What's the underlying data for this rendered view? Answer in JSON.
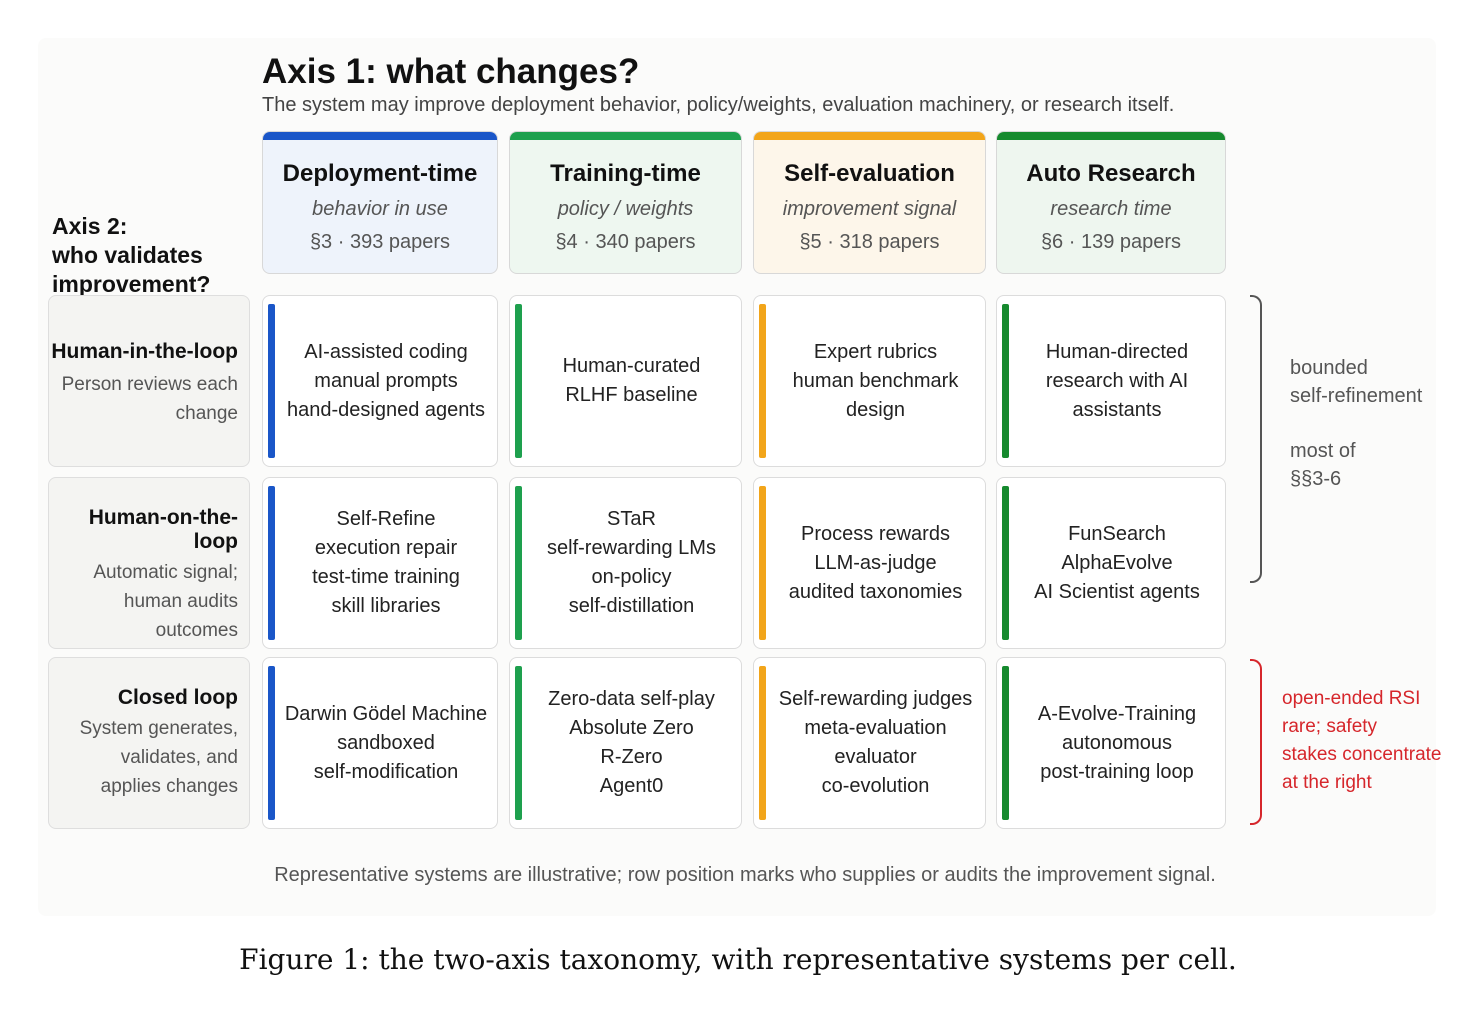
{
  "axis1": {
    "title": "Axis 1: what changes?",
    "subtitle": "The system may improve deployment behavior, policy/weights, evaluation machinery, or research itself."
  },
  "axis2": {
    "title_lines": [
      "Axis 2:",
      "who validates",
      "improvement?"
    ]
  },
  "columns": [
    {
      "name": "Deployment-time",
      "sub": "behavior in use",
      "count": "§3 · 393 papers",
      "color": "#1a56c8",
      "tint": "#eef3fb"
    },
    {
      "name": "Training-time",
      "sub": "policy / weights",
      "count": "§4 · 340 papers",
      "color": "#1ea04e",
      "tint": "#eef7f0"
    },
    {
      "name": "Self-evaluation",
      "sub": "improvement signal",
      "count": "§5 · 318 papers",
      "color": "#f2a51a",
      "tint": "#fdf6ea"
    },
    {
      "name": "Auto Research",
      "sub": "research time",
      "count": "§6 · 139 papers",
      "color": "#168a2e",
      "tint": "#eef6ef"
    }
  ],
  "rows": [
    {
      "name": "Human-in-the-loop",
      "desc": "Person reviews each\nchange"
    },
    {
      "name": "Human-on-the-loop",
      "desc": "Automatic signal;\nhuman audits\noutcomes"
    },
    {
      "name": "Closed loop",
      "desc": "System generates,\nvalidates, and\napplies changes"
    }
  ],
  "cells": [
    [
      [
        "AI-assisted coding",
        "manual prompts",
        "hand-designed agents"
      ],
      [
        "Human-curated",
        "RLHF baseline"
      ],
      [
        "Expert rubrics",
        "human benchmark",
        "design"
      ],
      [
        "Human-directed",
        "research with AI",
        "assistants"
      ]
    ],
    [
      [
        "Self-Refine",
        "execution repair",
        "test-time training",
        "skill libraries"
      ],
      [
        "STaR",
        "self-rewarding LMs",
        "on-policy",
        "self-distillation"
      ],
      [
        "Process rewards",
        "LLM-as-judge",
        "audited taxonomies"
      ],
      [
        "FunSearch",
        "AlphaEvolve",
        "AI Scientist agents"
      ]
    ],
    [
      [
        "Darwin Gödel Machine",
        "sandboxed",
        "self-modification"
      ],
      [
        "Zero-data self-play",
        "Absolute Zero",
        "R-Zero",
        "Agent0"
      ],
      [
        "Self-rewarding judges",
        "meta-evaluation",
        "evaluator",
        "co-evolution"
      ],
      [
        "A-Evolve-Training",
        "autonomous",
        "post-training loop"
      ]
    ]
  ],
  "notes": {
    "bounded_lines": [
      "bounded",
      "self-refinement"
    ],
    "most_lines": [
      "most of",
      "§§3-6"
    ],
    "red_lines": [
      "open-ended RSI",
      "rare; safety",
      "stakes concentrate",
      "at the right"
    ],
    "red_color": "#d6262b"
  },
  "footnote": "Representative systems are illustrative; row position marks who supplies or audits the improvement signal.",
  "caption": "Figure 1: the two-axis taxonomy, with representative systems per cell."
}
